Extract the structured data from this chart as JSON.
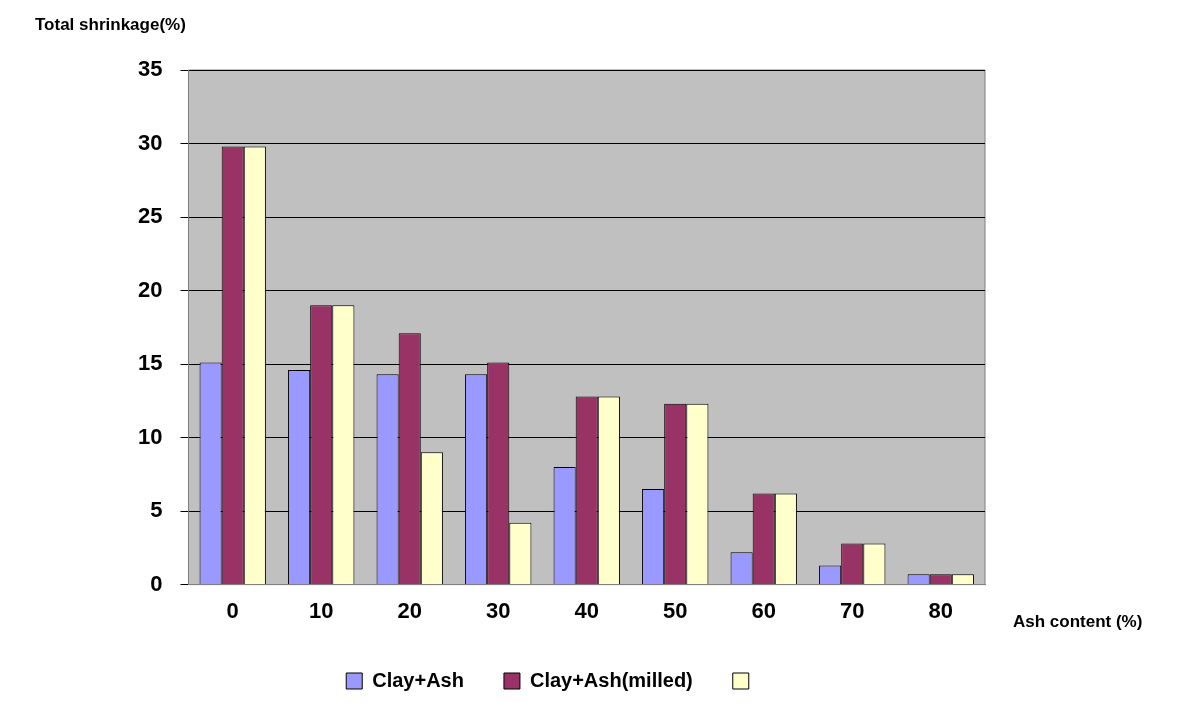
{
  "chart_data": {
    "type": "bar",
    "xlabel": "Ash content (%)",
    "ylabel": "Total shrinkage(%)",
    "categories": [
      "0",
      "10",
      "20",
      "30",
      "40",
      "50",
      "60",
      "70",
      "80"
    ],
    "series": [
      {
        "name": "Clay+Ash",
        "color": "#9999ff",
        "values": [
          15.1,
          14.6,
          14.3,
          14.3,
          8,
          6.5,
          2.2,
          1.3,
          0.7
        ]
      },
      {
        "name": "Clay+Ash(milled)",
        "color": "#993366",
        "values": [
          29.8,
          19,
          17.1,
          15.1,
          12.8,
          12.3,
          6.2,
          2.8,
          0.7
        ]
      },
      {
        "color": "#ffffcc",
        "values": [
          29.8,
          19,
          9,
          4.2,
          12.8,
          12.3,
          6.2,
          2.8,
          0.7
        ]
      }
    ],
    "ylim": [
      0,
      35
    ],
    "yticks": [
      0,
      5,
      10,
      15,
      20,
      25,
      30,
      35
    ],
    "grid": "y",
    "legend": "bottom"
  }
}
